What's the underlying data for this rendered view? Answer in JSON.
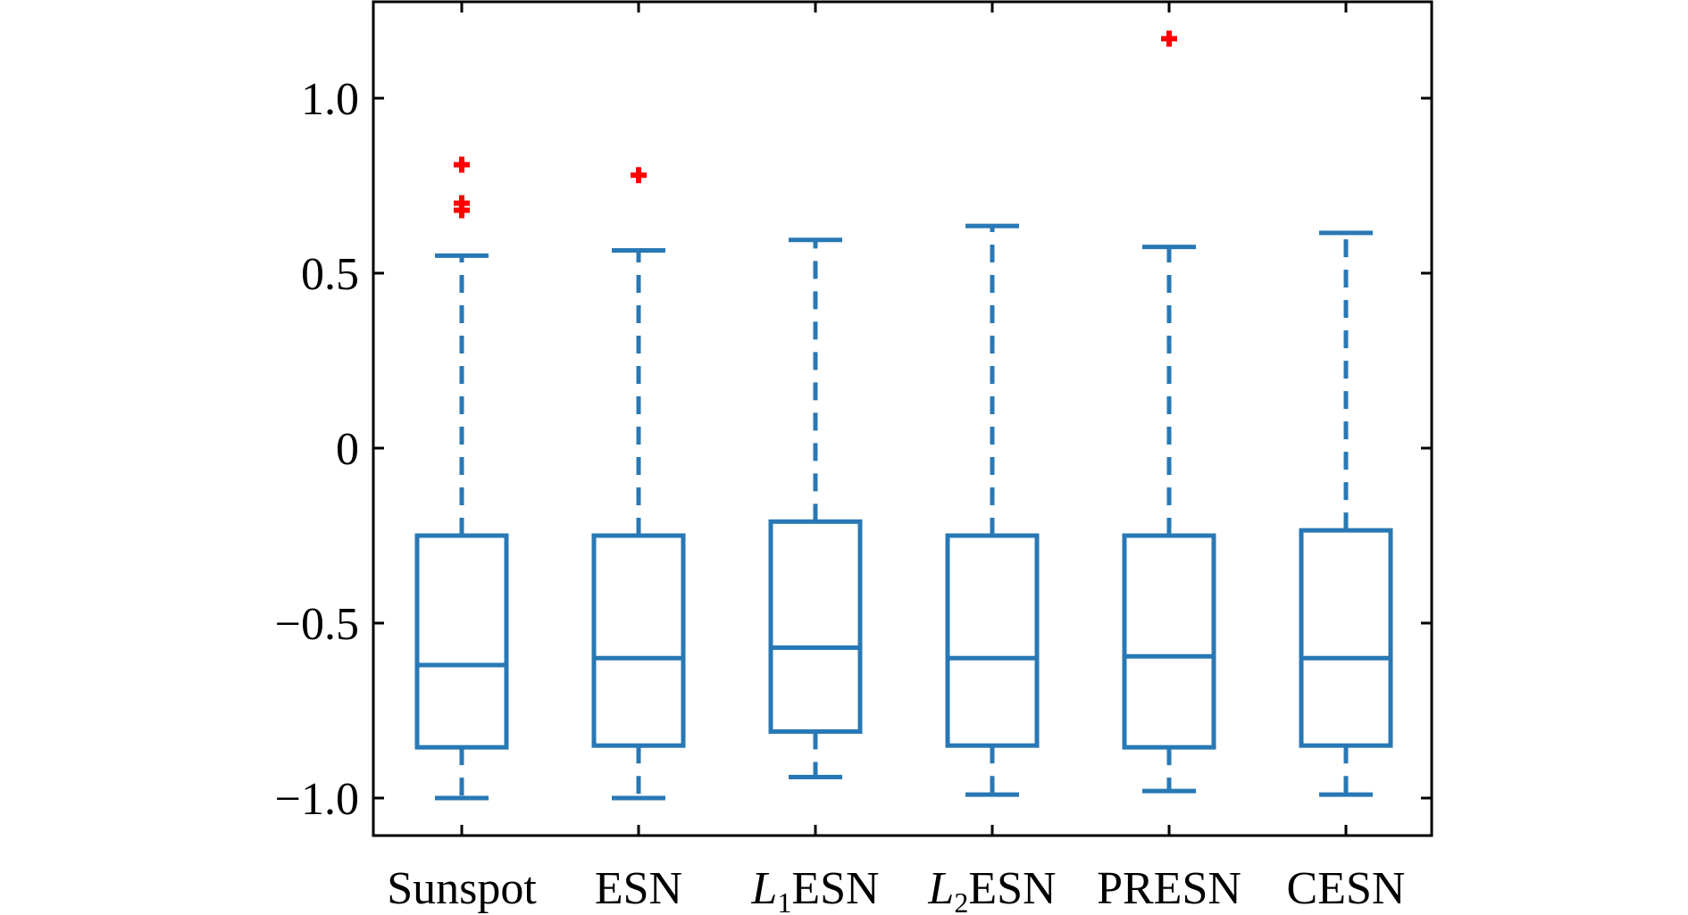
{
  "chart_data": {
    "type": "box",
    "xlabel": "",
    "ylabel": "",
    "ylim": [
      -1.1,
      1.25
    ],
    "yticks": [
      {
        "value": 1.0,
        "label": "1.0"
      },
      {
        "value": 0.5,
        "label": "0.5"
      },
      {
        "value": 0,
        "label": "0"
      },
      {
        "value": -0.5,
        "label": "−0.5"
      },
      {
        "value": -1.0,
        "label": "−1.0"
      }
    ],
    "categories": [
      {
        "name": "Sunspot",
        "italic_prefix": "",
        "subscript": "",
        "suffix": "Sunspot"
      },
      {
        "name": "ESN",
        "italic_prefix": "",
        "subscript": "",
        "suffix": "ESN"
      },
      {
        "name": "L1ESN",
        "italic_prefix": "L",
        "subscript": "1",
        "suffix": "ESN"
      },
      {
        "name": "L2ESN",
        "italic_prefix": "L",
        "subscript": "2",
        "suffix": "ESN"
      },
      {
        "name": "PRESN",
        "italic_prefix": "",
        "subscript": "",
        "suffix": "PRESN"
      },
      {
        "name": "CESN",
        "italic_prefix": "",
        "subscript": "",
        "suffix": "CESN"
      }
    ],
    "boxes": [
      {
        "whisker_low": -1.0,
        "q1": -0.855,
        "median": -0.62,
        "q3": -0.25,
        "whisker_high": 0.55,
        "outliers": [
          0.81,
          0.7,
          0.68
        ]
      },
      {
        "whisker_low": -1.0,
        "q1": -0.85,
        "median": -0.6,
        "q3": -0.25,
        "whisker_high": 0.565,
        "outliers": [
          0.78
        ]
      },
      {
        "whisker_low": -0.94,
        "q1": -0.81,
        "median": -0.57,
        "q3": -0.21,
        "whisker_high": 0.595,
        "outliers": []
      },
      {
        "whisker_low": -0.99,
        "q1": -0.85,
        "median": -0.6,
        "q3": -0.25,
        "whisker_high": 0.635,
        "outliers": []
      },
      {
        "whisker_low": -0.98,
        "q1": -0.855,
        "median": -0.595,
        "q3": -0.25,
        "whisker_high": 0.575,
        "outliers": [
          1.17
        ]
      },
      {
        "whisker_low": -0.99,
        "q1": -0.85,
        "median": -0.6,
        "q3": -0.235,
        "whisker_high": 0.615,
        "outliers": []
      }
    ],
    "box_color": "#2878B5",
    "outlier_color": "#FF0000",
    "outlier_marker": "+",
    "grid": false,
    "legend": "none"
  }
}
